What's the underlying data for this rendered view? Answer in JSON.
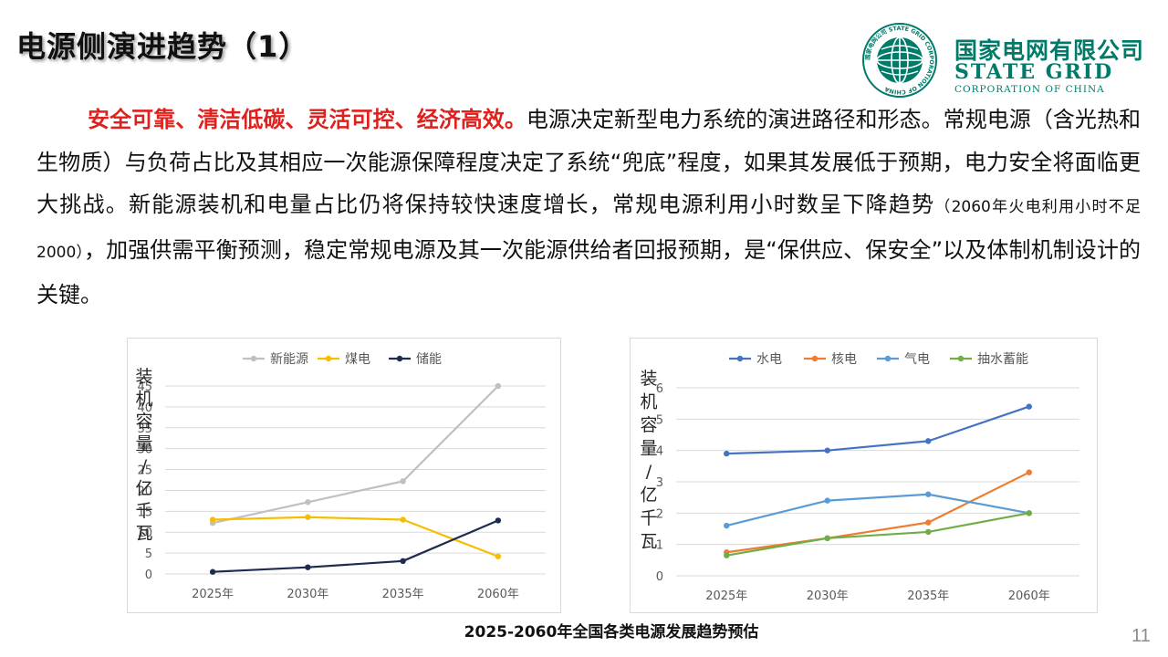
{
  "title": "电源侧演进趋势（1）",
  "logo": {
    "cn": "国家电网有限公司",
    "en_line1": "STATE GRID",
    "en_line2": "CORPORATION OF CHINA",
    "ring_text": "国家电网公司 STATE GRID CORPORATION OF CHINA",
    "brand_color": "#007b6a"
  },
  "paragraph": {
    "highlight": "安全可靠、清洁低碳、灵活可控、经济高效。",
    "line1": "电源决定新型电力系统的演进路径和形态。常规电源（含光热和生物质）与负荷占比及其相应一次能源保障程度决定了系统“兜底”程度，如果其发展低于预期，电力安全将面临更大挑战。新能源装机和电量占比仍将保持较快速度增长，常规电源利用小时数呈下降趋势",
    "note": "（2060年火电利用小时不足2000）",
    "line2": "，加强供需平衡预测，稳定常规电源及其一次能源供给者回报预期，是“保供应、保安全”以及体制机制设计的关键。",
    "highlight_color": "#e0201d"
  },
  "caption": "2025-2060年全国各类电源发展趋势预估",
  "page_number": "11",
  "chart_data": [
    {
      "type": "line",
      "categories": [
        "2025年",
        "2030年",
        "2035年",
        "2060年"
      ],
      "ylabel": "装机容量/亿千瓦",
      "ylim": [
        0,
        45
      ],
      "yticks": [
        0,
        5,
        10,
        15,
        20,
        25,
        30,
        35,
        40,
        45
      ],
      "grid": true,
      "legend": "top",
      "series": [
        {
          "name": "新能源",
          "color": "#c0c0c0",
          "values": [
            12.2,
            17.2,
            22.2,
            45.0
          ]
        },
        {
          "name": "煤电",
          "color": "#f5be00",
          "values": [
            13.0,
            13.6,
            13.0,
            4.2
          ]
        },
        {
          "name": "储能",
          "color": "#1c2c4f",
          "values": [
            0.5,
            1.6,
            3.1,
            12.8
          ]
        }
      ]
    },
    {
      "type": "line",
      "categories": [
        "2025年",
        "2030年",
        "2035年",
        "2060年"
      ],
      "ylabel": "装机容量/亿千瓦",
      "ylim": [
        0,
        6
      ],
      "yticks": [
        0,
        1,
        2,
        3,
        4,
        5,
        6
      ],
      "grid": true,
      "legend": "top",
      "series": [
        {
          "name": "水电",
          "color": "#4472c4",
          "values": [
            3.9,
            4.0,
            4.3,
            5.4
          ]
        },
        {
          "name": "核电",
          "color": "#ed7d31",
          "values": [
            0.75,
            1.2,
            1.7,
            3.3
          ]
        },
        {
          "name": "气电",
          "color": "#5b9bd5",
          "values": [
            1.6,
            2.4,
            2.6,
            2.0
          ]
        },
        {
          "name": "抽水蓄能",
          "color": "#70ad47",
          "values": [
            0.65,
            1.2,
            1.4,
            2.0
          ]
        }
      ]
    }
  ]
}
